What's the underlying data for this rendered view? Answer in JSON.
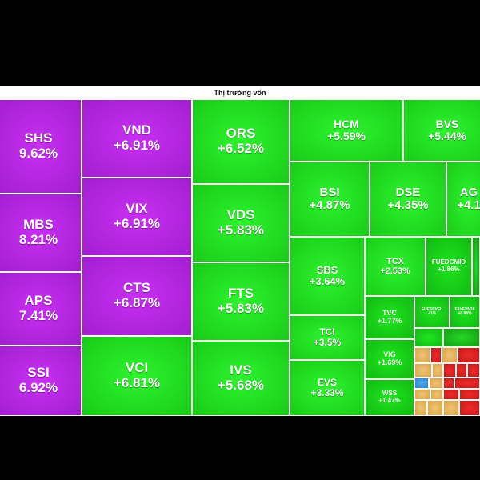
{
  "title": "Thị trường vốn",
  "chart_data": {
    "type": "treemap",
    "title": "Thị trường vốn",
    "items": [
      {
        "symbol": "SHS",
        "change": "9.62%",
        "value": 9.62,
        "color": "purple"
      },
      {
        "symbol": "MBS",
        "change": "8.21%",
        "value": 8.21,
        "color": "purple"
      },
      {
        "symbol": "APS",
        "change": "7.41%",
        "value": 7.41,
        "color": "purple"
      },
      {
        "symbol": "SSI",
        "change": "6.92%",
        "value": 6.92,
        "color": "purple"
      },
      {
        "symbol": "VND",
        "change": "+6.91%",
        "value": 6.91,
        "color": "purple"
      },
      {
        "symbol": "VIX",
        "change": "+6.91%",
        "value": 6.91,
        "color": "purple"
      },
      {
        "symbol": "CTS",
        "change": "+6.87%",
        "value": 6.87,
        "color": "purple"
      },
      {
        "symbol": "VCI",
        "change": "+6.81%",
        "value": 6.81,
        "color": "green"
      },
      {
        "symbol": "ORS",
        "change": "+6.52%",
        "value": 6.52,
        "color": "green"
      },
      {
        "symbol": "VDS",
        "change": "+5.83%",
        "value": 5.83,
        "color": "green"
      },
      {
        "symbol": "FTS",
        "change": "+5.83%",
        "value": 5.83,
        "color": "green"
      },
      {
        "symbol": "IVS",
        "change": "+5.68%",
        "value": 5.68,
        "color": "green"
      },
      {
        "symbol": "HCM",
        "change": "+5.59%",
        "value": 5.59,
        "color": "green"
      },
      {
        "symbol": "BVS",
        "change": "+5.44%",
        "value": 5.44,
        "color": "green"
      },
      {
        "symbol": "BSI",
        "change": "+4.87%",
        "value": 4.87,
        "color": "green"
      },
      {
        "symbol": "DSE",
        "change": "+4.35%",
        "value": 4.35,
        "color": "green"
      },
      {
        "symbol": "AG",
        "change": "+4.1",
        "value": 4.1,
        "color": "green"
      },
      {
        "symbol": "SBS",
        "change": "+3.64%",
        "value": 3.64,
        "color": "green"
      },
      {
        "symbol": "TCX",
        "change": "+2.53%",
        "value": 2.53,
        "color": "green"
      },
      {
        "symbol": "FUEDCMID",
        "change": "+1.86%",
        "value": 1.86,
        "color": "green"
      },
      {
        "symbol": "TCI",
        "change": "+3.5%",
        "value": 3.5,
        "color": "green"
      },
      {
        "symbol": "EVS",
        "change": "+3.33%",
        "value": 3.33,
        "color": "green"
      },
      {
        "symbol": "TVC",
        "change": "+1.77%",
        "value": 1.77,
        "color": "green"
      },
      {
        "symbol": "VIG",
        "change": "+1.69%",
        "value": 1.69,
        "color": "green"
      },
      {
        "symbol": "WSS",
        "change": "+1.47%",
        "value": 1.47,
        "color": "green"
      },
      {
        "symbol": "FUESSVFL",
        "change": "+1%",
        "value": 1,
        "color": "green"
      },
      {
        "symbol": "E1VFVN30",
        "change": "+0.98%",
        "value": 0.98,
        "color": "green"
      }
    ]
  }
}
